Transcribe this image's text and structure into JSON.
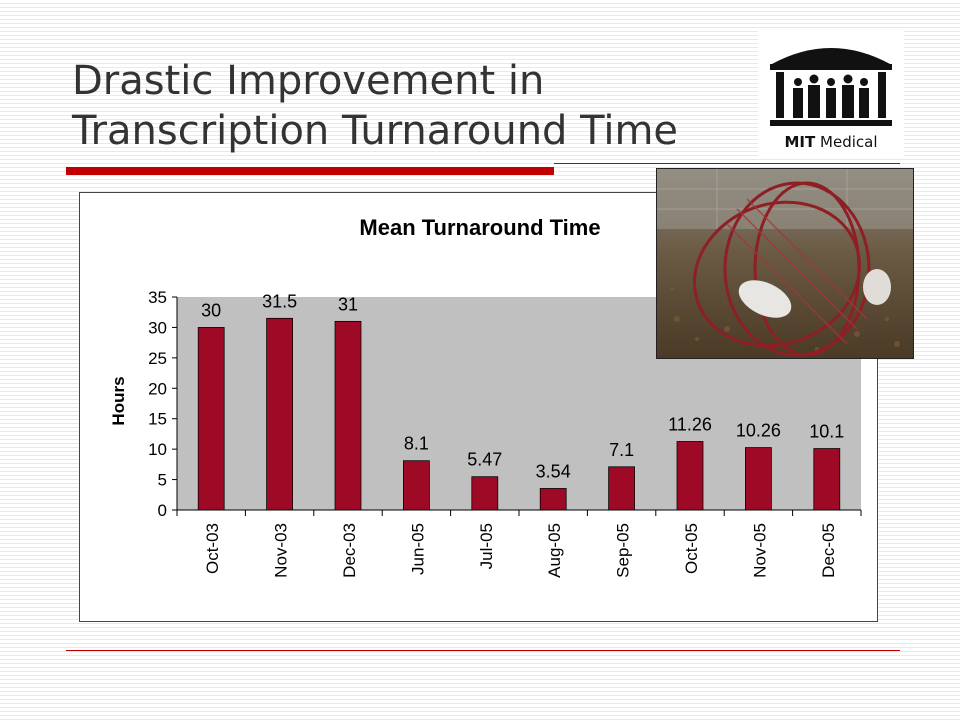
{
  "slide": {
    "title_line1": "Drastic Improvement in",
    "title_line2": "Transcription Turnaround Time"
  },
  "logo": {
    "text_bold": "MIT",
    "text_rest": " Medical"
  },
  "photo": {
    "icon": "hamster-wheel-photo"
  },
  "colors": {
    "bar": "#9e0a26",
    "plot_bg": "#c0c0c0",
    "accent": "#c00000"
  },
  "chart_data": {
    "type": "bar",
    "title": "Mean Turnaround Time",
    "xlabel": "",
    "ylabel": "Hours",
    "categories": [
      "Oct-03",
      "Nov-03",
      "Dec-03",
      "Jun-05",
      "Jul-05",
      "Aug-05",
      "Sep-05",
      "Oct-05",
      "Nov-05",
      "Dec-05"
    ],
    "values": [
      30,
      31.5,
      31,
      8.1,
      5.47,
      3.54,
      7.1,
      11.26,
      10.26,
      10.1
    ],
    "data_labels": [
      "30",
      "31.5",
      "31",
      "8.1",
      "5.47",
      "3.54",
      "7.1",
      "11.26",
      "10.26",
      "10.1"
    ],
    "yticks": [
      0,
      5,
      10,
      15,
      20,
      25,
      30,
      35
    ],
    "ylim": [
      0,
      35
    ],
    "grid": false,
    "legend": "none"
  }
}
